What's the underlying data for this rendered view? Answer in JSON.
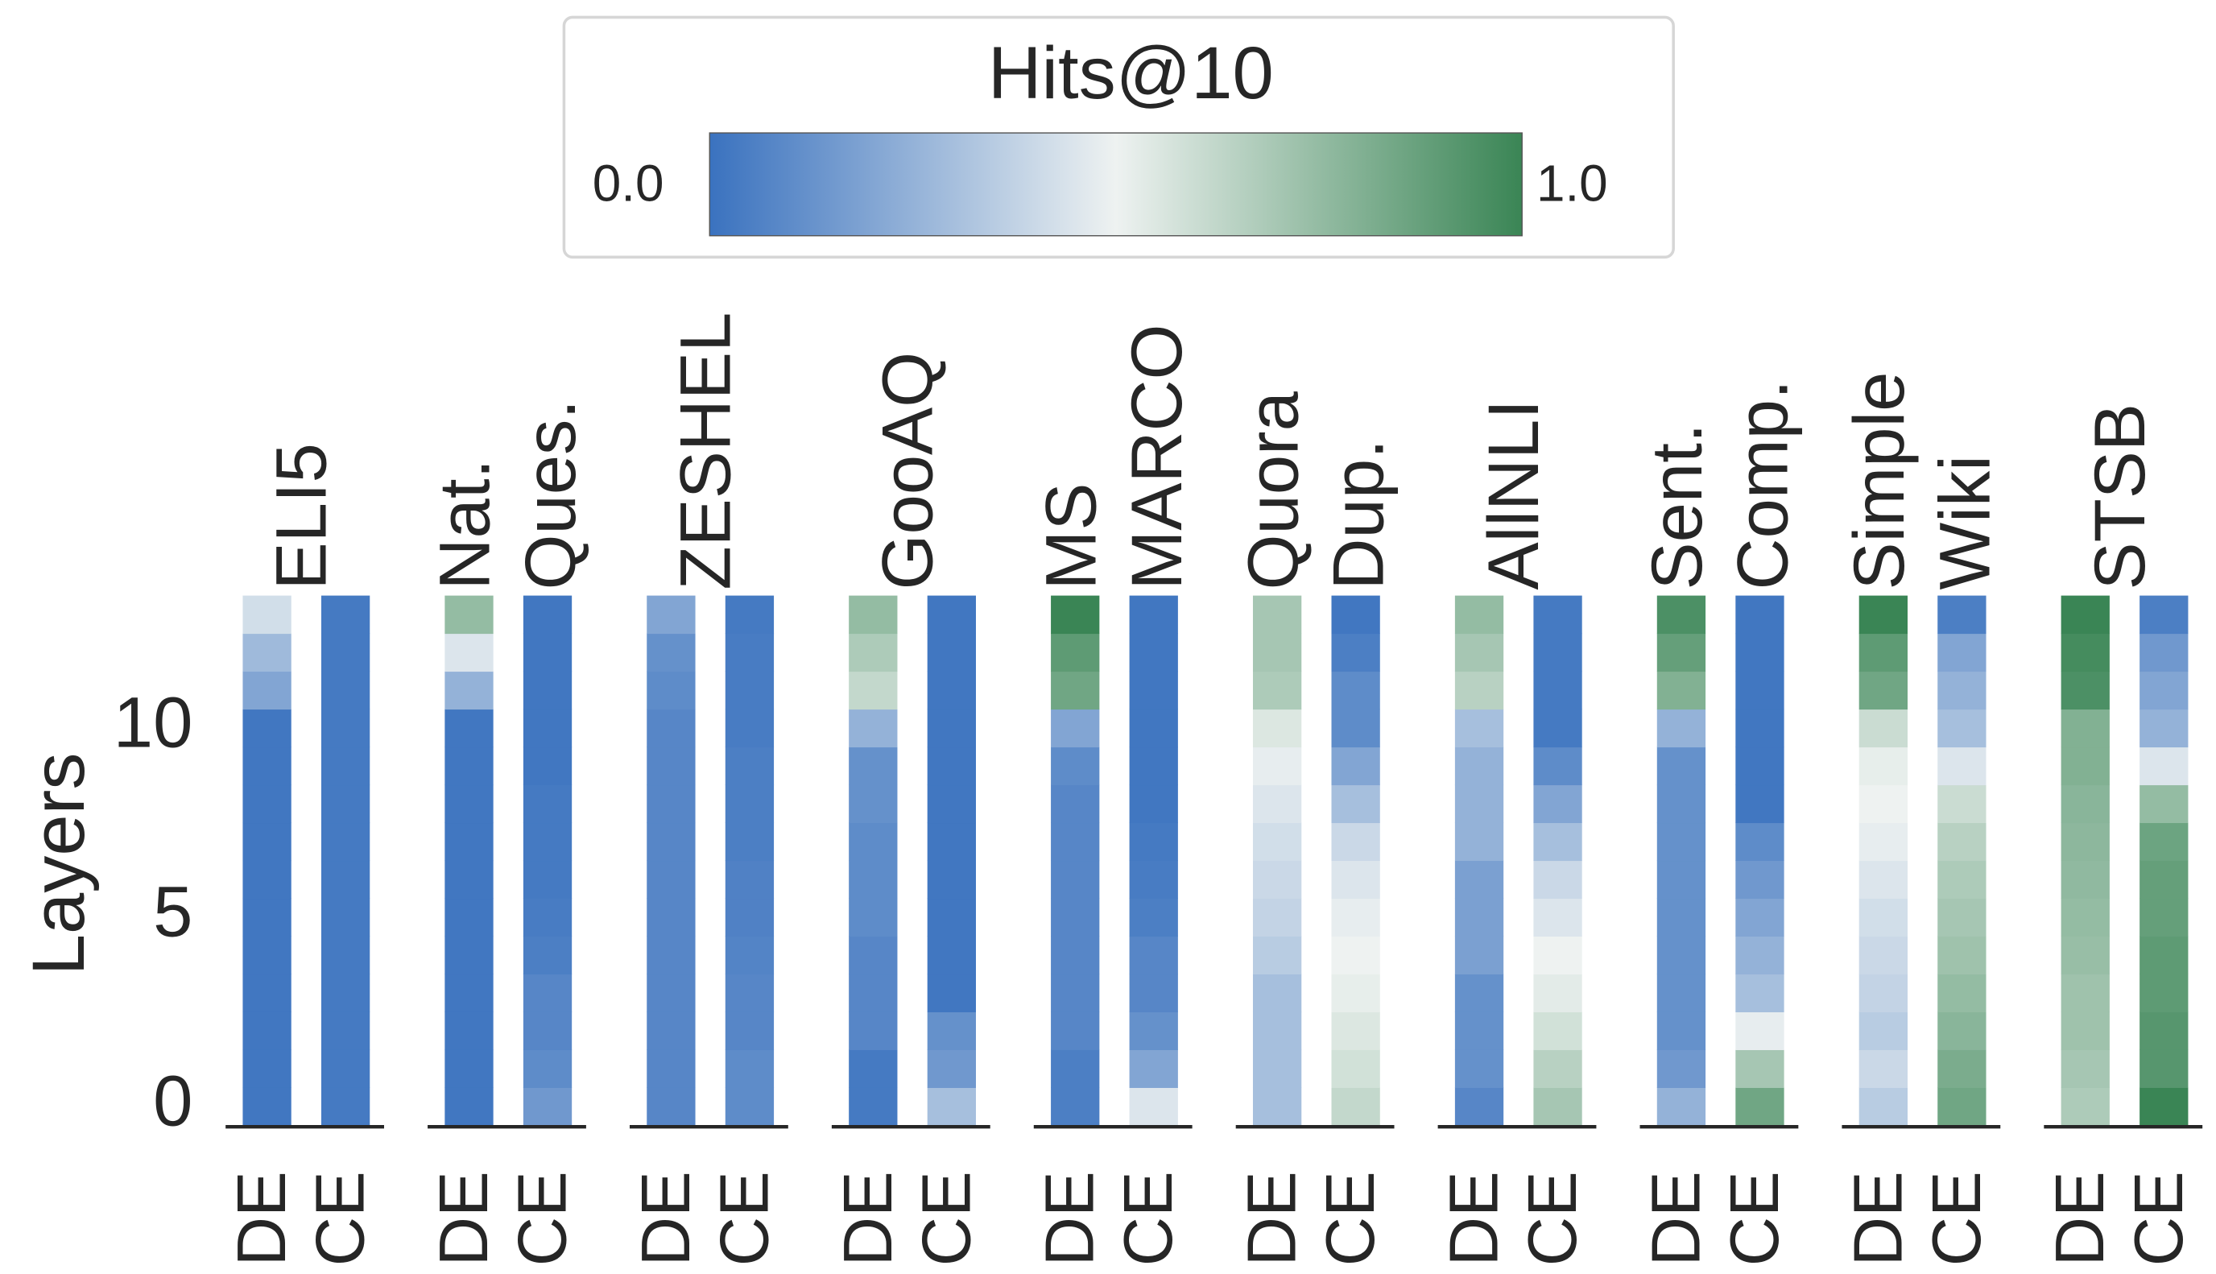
{
  "chart_data": {
    "type": "heatmap",
    "y_label": "Layers",
    "ylim": [
      -0.5,
      13.5
    ],
    "yticks": [
      0,
      5,
      10
    ],
    "models": [
      "DE",
      "CE"
    ],
    "colorbar": {
      "title": "Hits@10",
      "clim": [
        0,
        1
      ],
      "ticks": [
        {
          "value": 0,
          "label": "0.0"
        },
        {
          "value": 1,
          "label": "1.0"
        }
      ],
      "colors": [
        "#3a72bf",
        "#eef2f1",
        "#3a8555"
      ]
    },
    "groups": [
      {
        "name": [
          "ELI5"
        ],
        "values": [
          [
            0.02,
            0.02,
            0.02,
            0.02,
            0.02,
            0.02,
            0.02,
            0.02,
            0.02,
            0.02,
            0.02,
            0.2,
            0.28,
            0.42
          ],
          [
            0.03,
            0.03,
            0.03,
            0.03,
            0.03,
            0.03,
            0.03,
            0.03,
            0.03,
            0.03,
            0.03,
            0.03,
            0.03,
            0.03
          ]
        ]
      },
      {
        "name": [
          "Nat.",
          "Ques."
        ],
        "values": [
          [
            0.02,
            0.02,
            0.02,
            0.02,
            0.02,
            0.02,
            0.02,
            0.02,
            0.02,
            0.02,
            0.02,
            0.25,
            0.45,
            0.75
          ],
          [
            0.15,
            0.1,
            0.08,
            0.08,
            0.05,
            0.04,
            0.03,
            0.03,
            0.03,
            0.02,
            0.02,
            0.02,
            0.02,
            0.02
          ]
        ]
      },
      {
        "name": [
          "ZESHEL"
        ],
        "values": [
          [
            0.08,
            0.08,
            0.08,
            0.08,
            0.08,
            0.08,
            0.08,
            0.08,
            0.08,
            0.08,
            0.08,
            0.1,
            0.12,
            0.2
          ],
          [
            0.1,
            0.1,
            0.08,
            0.08,
            0.07,
            0.06,
            0.06,
            0.05,
            0.05,
            0.05,
            0.04,
            0.04,
            0.04,
            0.03
          ]
        ]
      },
      {
        "name": [
          "GooAQ"
        ],
        "values": [
          [
            0.03,
            0.03,
            0.08,
            0.08,
            0.08,
            0.1,
            0.1,
            0.1,
            0.12,
            0.12,
            0.25,
            0.62,
            0.68,
            0.75
          ],
          [
            0.3,
            0.15,
            0.12,
            0.02,
            0.02,
            0.02,
            0.02,
            0.02,
            0.02,
            0.02,
            0.02,
            0.02,
            0.02,
            0.02
          ]
        ]
      },
      {
        "name": [
          "MS",
          "MARCO"
        ],
        "values": [
          [
            0.05,
            0.05,
            0.08,
            0.08,
            0.08,
            0.08,
            0.08,
            0.08,
            0.08,
            0.1,
            0.2,
            0.85,
            0.9,
            1.0
          ],
          [
            0.45,
            0.2,
            0.12,
            0.08,
            0.08,
            0.05,
            0.04,
            0.03,
            0.02,
            0.02,
            0.02,
            0.02,
            0.02,
            0.02
          ]
        ]
      },
      {
        "name": [
          "Quora",
          "Dup."
        ],
        "values": [
          [
            0.3,
            0.3,
            0.3,
            0.3,
            0.35,
            0.38,
            0.4,
            0.42,
            0.45,
            0.48,
            0.55,
            0.68,
            0.7,
            0.7
          ],
          [
            0.62,
            0.58,
            0.55,
            0.52,
            0.5,
            0.48,
            0.45,
            0.4,
            0.3,
            0.2,
            0.1,
            0.1,
            0.05,
            0.02
          ]
        ]
      },
      {
        "name": [
          "AllNLI"
        ],
        "values": [
          [
            0.08,
            0.12,
            0.12,
            0.12,
            0.18,
            0.18,
            0.18,
            0.25,
            0.25,
            0.25,
            0.3,
            0.65,
            0.7,
            0.75
          ],
          [
            0.7,
            0.65,
            0.58,
            0.53,
            0.5,
            0.45,
            0.4,
            0.3,
            0.2,
            0.1,
            0.03,
            0.03,
            0.03,
            0.03
          ]
        ]
      },
      {
        "name": [
          "Sent.",
          "Comp."
        ],
        "values": [
          [
            0.25,
            0.15,
            0.12,
            0.12,
            0.12,
            0.12,
            0.12,
            0.12,
            0.12,
            0.12,
            0.25,
            0.8,
            0.88,
            0.95
          ],
          [
            0.85,
            0.7,
            0.48,
            0.3,
            0.25,
            0.2,
            0.15,
            0.1,
            0.02,
            0.02,
            0.02,
            0.02,
            0.02,
            0.02
          ]
        ]
      },
      {
        "name": [
          "Simple",
          "Wiki"
        ],
        "values": [
          [
            0.35,
            0.4,
            0.35,
            0.38,
            0.4,
            0.42,
            0.45,
            0.48,
            0.5,
            0.52,
            0.6,
            0.85,
            0.9,
            1.0
          ],
          [
            0.85,
            0.82,
            0.78,
            0.75,
            0.72,
            0.7,
            0.68,
            0.65,
            0.6,
            0.45,
            0.3,
            0.25,
            0.2,
            0.05
          ]
        ]
      },
      {
        "name": [
          "STSB"
        ],
        "values": [
          [
            0.68,
            0.7,
            0.72,
            0.72,
            0.74,
            0.75,
            0.76,
            0.77,
            0.78,
            0.8,
            0.8,
            0.95,
            0.97,
            1.0
          ],
          [
            1.0,
            0.92,
            0.92,
            0.9,
            0.9,
            0.88,
            0.88,
            0.86,
            0.75,
            0.45,
            0.25,
            0.2,
            0.15,
            0.05
          ]
        ]
      }
    ]
  }
}
